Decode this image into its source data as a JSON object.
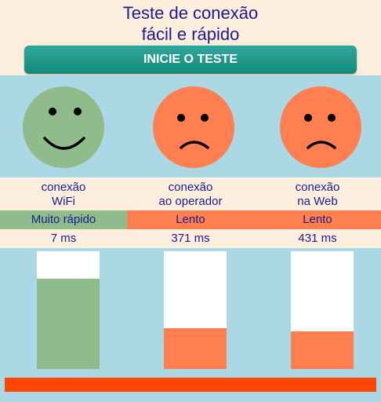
{
  "header": {
    "title_line1": "Teste de conexão",
    "title_line2": "fácil e rápido"
  },
  "start_button": {
    "label": "INICIE O TESTE"
  },
  "columns": [
    {
      "label_line1": "conexão",
      "label_line2": "WiFi",
      "status": "Muito rápido",
      "latency": "7 ms",
      "mood": "happy",
      "color": "#8fbc8a",
      "level": 0.77
    },
    {
      "label_line1": "conexão",
      "label_line2": "ao operador",
      "status": "Lento",
      "latency": "371 ms",
      "mood": "sad",
      "color": "#ff7f50",
      "level": 0.35
    },
    {
      "label_line1": "conexão",
      "label_line2": "na Web",
      "status": "Lento",
      "latency": "431 ms",
      "mood": "sad",
      "color": "#ff7f50",
      "level": 0.32
    }
  ],
  "colors": {
    "background": "#fdeedd",
    "band": "#acd8e5",
    "text": "#1c1c8a",
    "accent": "#ff4500",
    "button": "#1f9a8d"
  }
}
